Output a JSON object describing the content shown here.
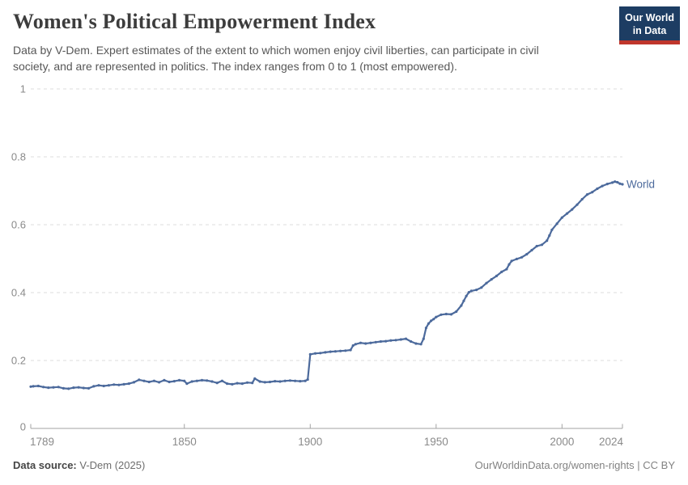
{
  "header": {
    "title": "Women's Political Empowerment Index",
    "subtitle_line1": "Data by V-Dem. Expert estimates of the extent to which women enjoy civil liberties, can participate in civil",
    "subtitle_line2": "society, and are represented in politics. The index ranges from 0 to 1 (most empowered).",
    "logo": {
      "line1": "Our World",
      "line2": "in Data",
      "bg_color": "#1d3d63",
      "bar_color": "#c0362c"
    }
  },
  "chart_data": {
    "type": "line",
    "title": "Women's Political Empowerment Index",
    "xlabel": "",
    "ylabel": "",
    "xlim": [
      1789,
      2024
    ],
    "ylim": [
      0,
      1
    ],
    "grid": "dashed-horizontal",
    "legend": "end-of-line-label",
    "x_ticks": [
      {
        "label": "1789",
        "year": 1789,
        "anchor": "start"
      },
      {
        "label": "1850",
        "year": 1850,
        "anchor": "middle"
      },
      {
        "label": "1900",
        "year": 1900,
        "anchor": "middle"
      },
      {
        "label": "1950",
        "year": 1950,
        "anchor": "middle"
      },
      {
        "label": "2000",
        "year": 2000,
        "anchor": "middle"
      },
      {
        "label": "2024",
        "year": 2024,
        "anchor": "end"
      }
    ],
    "y_ticks": [
      {
        "label": "1",
        "value": 1
      },
      {
        "label": "0.8",
        "value": 0.8
      },
      {
        "label": "0.6",
        "value": 0.6
      },
      {
        "label": "0.4",
        "value": 0.4
      },
      {
        "label": "0.2",
        "value": 0.2
      },
      {
        "label": "0",
        "value": 0
      }
    ],
    "series": [
      {
        "name": "World",
        "color": "#4c6a9c",
        "points": [
          [
            1789,
            0.123
          ],
          [
            1790,
            0.124
          ],
          [
            1792,
            0.125
          ],
          [
            1794,
            0.122
          ],
          [
            1796,
            0.12
          ],
          [
            1798,
            0.121
          ],
          [
            1800,
            0.122
          ],
          [
            1802,
            0.118
          ],
          [
            1804,
            0.117
          ],
          [
            1806,
            0.12
          ],
          [
            1808,
            0.121
          ],
          [
            1810,
            0.119
          ],
          [
            1812,
            0.118
          ],
          [
            1814,
            0.124
          ],
          [
            1816,
            0.127
          ],
          [
            1818,
            0.125
          ],
          [
            1820,
            0.127
          ],
          [
            1822,
            0.129
          ],
          [
            1824,
            0.128
          ],
          [
            1826,
            0.13
          ],
          [
            1828,
            0.132
          ],
          [
            1830,
            0.136
          ],
          [
            1832,
            0.143
          ],
          [
            1834,
            0.14
          ],
          [
            1836,
            0.137
          ],
          [
            1838,
            0.14
          ],
          [
            1840,
            0.136
          ],
          [
            1842,
            0.142
          ],
          [
            1844,
            0.137
          ],
          [
            1846,
            0.139
          ],
          [
            1848,
            0.142
          ],
          [
            1850,
            0.14
          ],
          [
            1851,
            0.132
          ],
          [
            1853,
            0.138
          ],
          [
            1855,
            0.14
          ],
          [
            1857,
            0.142
          ],
          [
            1859,
            0.141
          ],
          [
            1861,
            0.138
          ],
          [
            1863,
            0.134
          ],
          [
            1865,
            0.14
          ],
          [
            1867,
            0.132
          ],
          [
            1869,
            0.13
          ],
          [
            1871,
            0.133
          ],
          [
            1873,
            0.132
          ],
          [
            1875,
            0.135
          ],
          [
            1877,
            0.134
          ],
          [
            1878,
            0.147
          ],
          [
            1880,
            0.138
          ],
          [
            1882,
            0.136
          ],
          [
            1884,
            0.137
          ],
          [
            1886,
            0.139
          ],
          [
            1888,
            0.138
          ],
          [
            1890,
            0.14
          ],
          [
            1892,
            0.141
          ],
          [
            1894,
            0.14
          ],
          [
            1896,
            0.139
          ],
          [
            1898,
            0.14
          ],
          [
            1899,
            0.144
          ],
          [
            1900,
            0.218
          ],
          [
            1902,
            0.221
          ],
          [
            1904,
            0.222
          ],
          [
            1906,
            0.224
          ],
          [
            1908,
            0.226
          ],
          [
            1910,
            0.227
          ],
          [
            1912,
            0.228
          ],
          [
            1914,
            0.229
          ],
          [
            1916,
            0.231
          ],
          [
            1917,
            0.244
          ],
          [
            1918,
            0.248
          ],
          [
            1920,
            0.252
          ],
          [
            1922,
            0.25
          ],
          [
            1924,
            0.252
          ],
          [
            1926,
            0.254
          ],
          [
            1928,
            0.256
          ],
          [
            1930,
            0.257
          ],
          [
            1932,
            0.259
          ],
          [
            1934,
            0.26
          ],
          [
            1936,
            0.262
          ],
          [
            1938,
            0.264
          ],
          [
            1940,
            0.256
          ],
          [
            1942,
            0.25
          ],
          [
            1944,
            0.248
          ],
          [
            1945,
            0.264
          ],
          [
            1946,
            0.296
          ],
          [
            1947,
            0.309
          ],
          [
            1948,
            0.317
          ],
          [
            1949,
            0.322
          ],
          [
            1950,
            0.328
          ],
          [
            1952,
            0.335
          ],
          [
            1954,
            0.337
          ],
          [
            1956,
            0.336
          ],
          [
            1958,
            0.344
          ],
          [
            1960,
            0.362
          ],
          [
            1961,
            0.376
          ],
          [
            1962,
            0.39
          ],
          [
            1963,
            0.401
          ],
          [
            1964,
            0.405
          ],
          [
            1966,
            0.408
          ],
          [
            1968,
            0.415
          ],
          [
            1970,
            0.428
          ],
          [
            1972,
            0.439
          ],
          [
            1974,
            0.449
          ],
          [
            1976,
            0.461
          ],
          [
            1978,
            0.469
          ],
          [
            1979,
            0.483
          ],
          [
            1980,
            0.493
          ],
          [
            1982,
            0.499
          ],
          [
            1984,
            0.504
          ],
          [
            1986,
            0.513
          ],
          [
            1988,
            0.525
          ],
          [
            1990,
            0.537
          ],
          [
            1992,
            0.541
          ],
          [
            1994,
            0.553
          ],
          [
            1995,
            0.568
          ],
          [
            1996,
            0.585
          ],
          [
            1998,
            0.603
          ],
          [
            2000,
            0.621
          ],
          [
            2002,
            0.633
          ],
          [
            2004,
            0.645
          ],
          [
            2006,
            0.659
          ],
          [
            2008,
            0.675
          ],
          [
            2010,
            0.689
          ],
          [
            2012,
            0.696
          ],
          [
            2014,
            0.706
          ],
          [
            2016,
            0.714
          ],
          [
            2018,
            0.72
          ],
          [
            2020,
            0.724
          ],
          [
            2021,
            0.727
          ],
          [
            2022,
            0.725
          ],
          [
            2023,
            0.721
          ],
          [
            2024,
            0.719
          ]
        ]
      }
    ]
  },
  "footer": {
    "data_source_label": "Data source:",
    "data_source_value": "V-Dem (2025)",
    "right_text": "OurWorldinData.org/women-rights | CC BY"
  }
}
